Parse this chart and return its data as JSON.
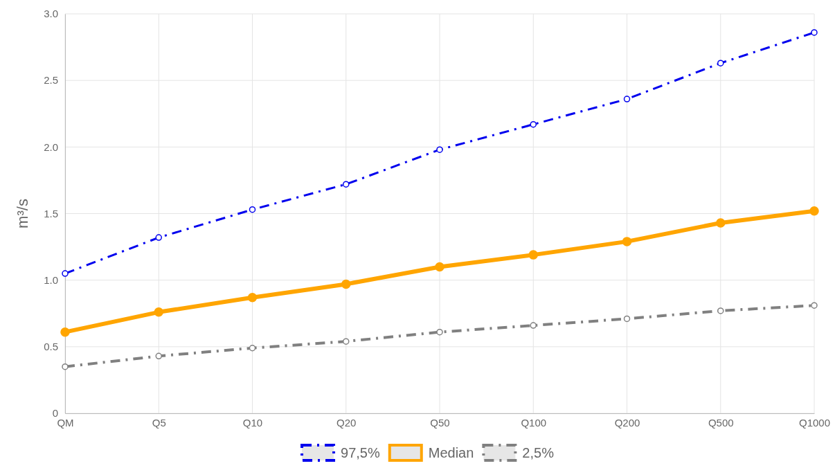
{
  "chart_data": {
    "type": "line",
    "ylabel": "m³/s",
    "categories": [
      "QM",
      "Q5",
      "Q10",
      "Q20",
      "Q50",
      "Q100",
      "Q200",
      "Q500",
      "Q1000"
    ],
    "series": [
      {
        "name": "97,5%",
        "color": "#0000ee",
        "line_style": "dashed",
        "marker": "circle",
        "values": [
          1.05,
          1.32,
          1.53,
          1.72,
          1.98,
          2.17,
          2.36,
          2.63,
          2.86
        ]
      },
      {
        "name": "Median",
        "color": "#ffa500",
        "line_style": "solid",
        "marker": "circle",
        "values": [
          0.61,
          0.76,
          0.87,
          0.97,
          1.1,
          1.19,
          1.29,
          1.43,
          1.52
        ]
      },
      {
        "name": "2,5%",
        "color": "#808080",
        "line_style": "dashed",
        "marker": "circle",
        "values": [
          0.35,
          0.43,
          0.49,
          0.54,
          0.61,
          0.66,
          0.71,
          0.77,
          0.81
        ]
      }
    ],
    "ylim": [
      0,
      3
    ],
    "yticks": [
      0,
      {
        "value": 0.5,
        "label": "0.5"
      },
      {
        "value": 1,
        "label": "1.0"
      },
      {
        "value": 1.5,
        "label": "1.5"
      },
      {
        "value": 2,
        "label": "2.0"
      },
      {
        "value": 2.5,
        "label": "2.5"
      },
      {
        "value": 3,
        "label": "3.0"
      }
    ],
    "grid": true,
    "legend": "bottom"
  }
}
